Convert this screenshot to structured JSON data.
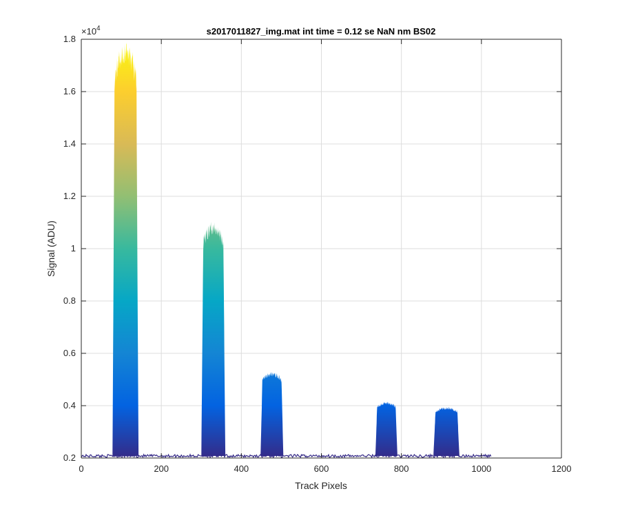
{
  "chart_data": {
    "type": "area",
    "title": "s2017011827_img.mat int time = 0.12 se  NaN nm BS02",
    "xlabel": "Track Pixels",
    "ylabel": "Signal (ADU)",
    "y_exponent_label": "×10",
    "y_exponent_power": "4",
    "xlim": [
      0,
      1200
    ],
    "ylim": [
      2000,
      18000
    ],
    "xticks": [
      0,
      200,
      400,
      600,
      800,
      1000,
      1200
    ],
    "xtick_labels": [
      "0",
      "200",
      "400",
      "600",
      "800",
      "1000",
      "1200"
    ],
    "yticks": [
      2000,
      4000,
      6000,
      8000,
      10000,
      12000,
      14000,
      16000,
      18000
    ],
    "ytick_labels": [
      "0.2",
      "0.4",
      "0.6",
      "0.8",
      "1",
      "1.2",
      "1.4",
      "1.6",
      "1.8"
    ],
    "grid": true,
    "colormap": "parula",
    "colormap_stops": [
      "#352a87",
      "#0363e1",
      "#1485d4",
      "#06a7c6",
      "#38b99e",
      "#92bf73",
      "#d9ba56",
      "#fcce2e",
      "#f9fb0e"
    ],
    "baseline": 2080,
    "data_x_range": [
      0,
      1024
    ],
    "peaks": [
      {
        "x_start": 78,
        "x_end": 143,
        "peak": 17500
      },
      {
        "x_start": 300,
        "x_end": 360,
        "peak": 10800
      },
      {
        "x_start": 448,
        "x_end": 505,
        "peak": 5200
      },
      {
        "x_start": 735,
        "x_end": 790,
        "peak": 4100
      },
      {
        "x_start": 880,
        "x_end": 945,
        "peak": 3900
      }
    ]
  }
}
